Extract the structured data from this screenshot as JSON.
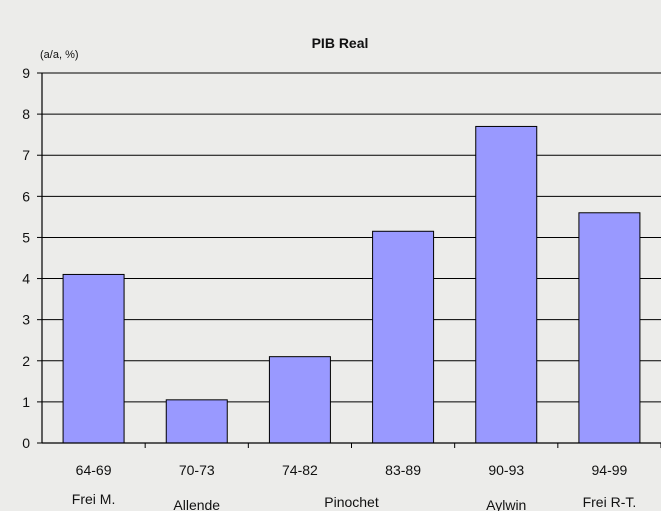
{
  "chart_data": {
    "type": "bar",
    "title": "PIB Real",
    "unit_label": "(a/a, %)",
    "categories": [
      "64-69",
      "70-73",
      "74-82",
      "83-89",
      "90-93",
      "94-99"
    ],
    "values": [
      4.1,
      1.05,
      2.1,
      5.15,
      7.7,
      5.6
    ],
    "period_labels": [
      "Frei M.",
      "Allende",
      "Pinochet",
      "Aylwin",
      "Frei R-T."
    ],
    "yticks": [
      "0",
      "1",
      "2",
      "3",
      "4",
      "5",
      "6",
      "7",
      "8",
      "9"
    ],
    "ylim": [
      0,
      9
    ],
    "grid": true,
    "legend": "none",
    "bar_color": "#9999ff",
    "bar_stroke": "#000000",
    "background_color": "#ececea",
    "gridline_color": "#000000"
  }
}
